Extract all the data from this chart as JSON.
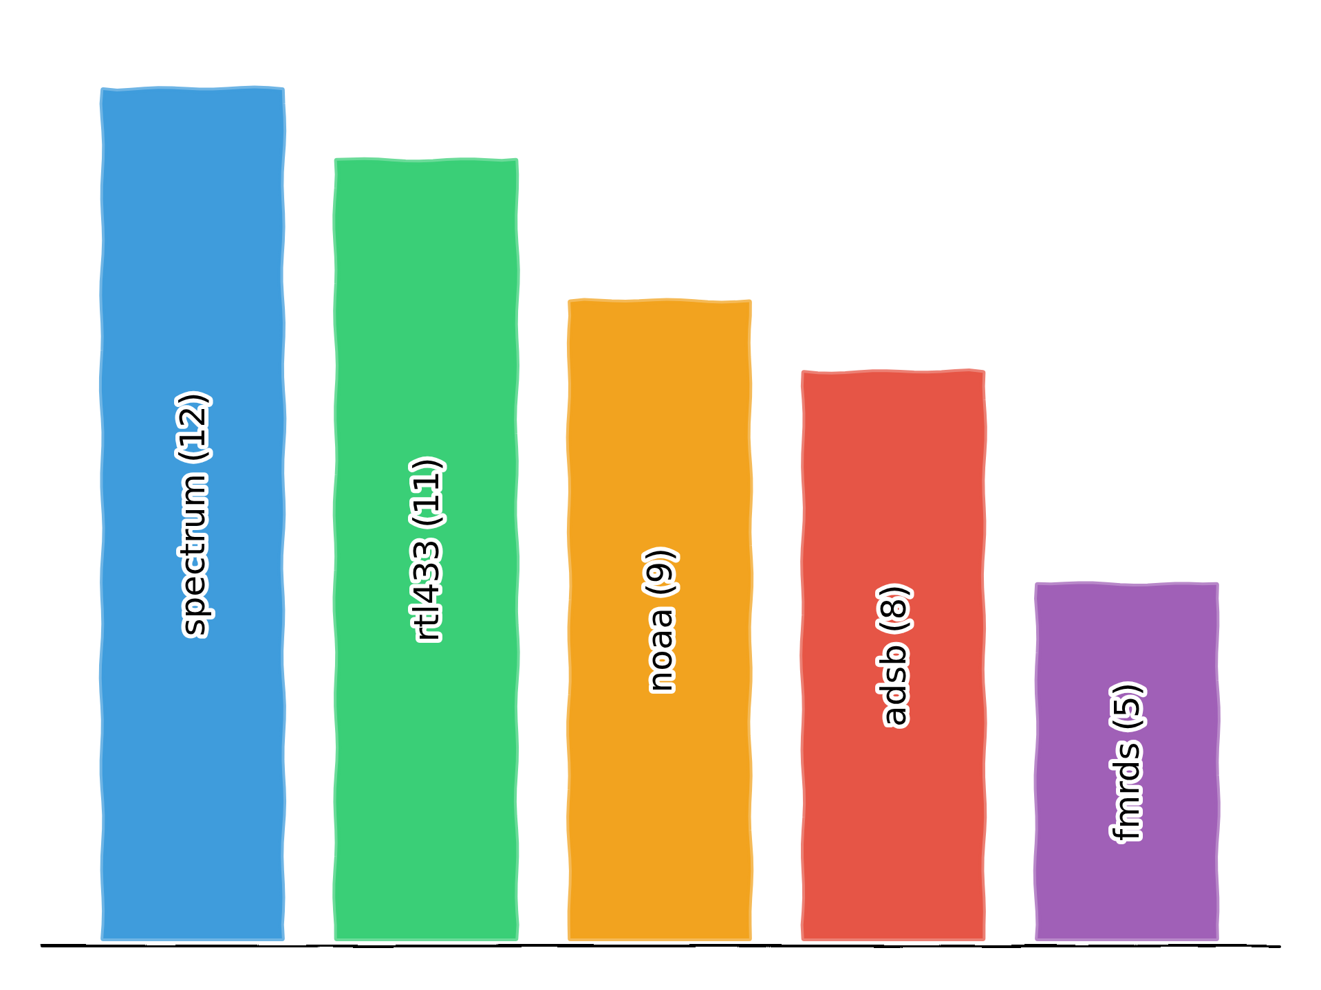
{
  "chart_data": {
    "type": "bar",
    "categories": [
      "spectrum",
      "rtl433",
      "noaa",
      "adsb",
      "fmrds"
    ],
    "values": [
      12,
      11,
      9,
      8,
      5
    ],
    "value_labels": [
      "(12)",
      "(11)",
      "(9)",
      "(8)",
      "(5)"
    ],
    "colors": [
      "#3f9cdc",
      "#3acf77",
      "#f2a31f",
      "#e65546",
      "#a060b7"
    ]
  }
}
